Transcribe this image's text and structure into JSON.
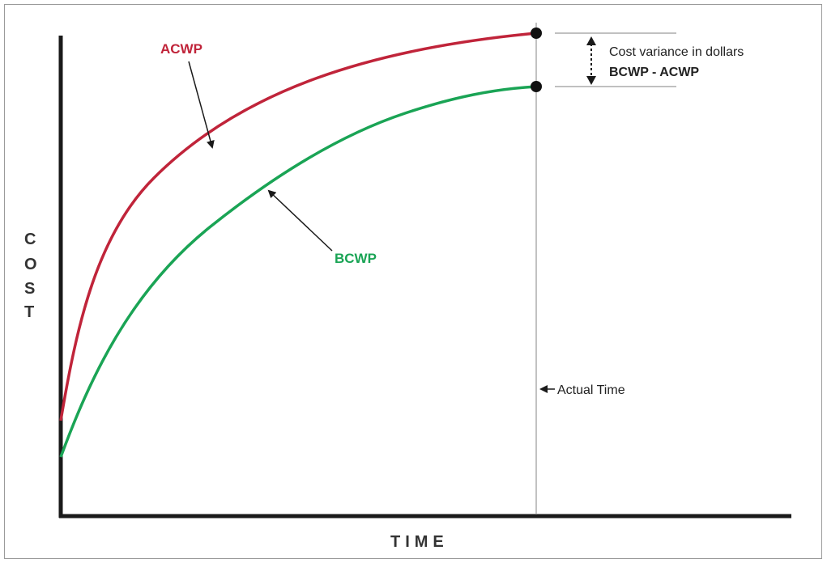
{
  "labels": {
    "acwp": "ACWP",
    "bcwp": "BCWP",
    "y_axis_letters": [
      "C",
      "O",
      "S",
      "T"
    ],
    "x_axis": "TIME",
    "actual_time": "Actual Time",
    "variance_line1": "Cost variance in dollars",
    "variance_line2": "BCWP - ACWP"
  },
  "colors": {
    "acwp": "#c0243a",
    "bcwp": "#1aa455",
    "axis": "#1a1a1a",
    "guide": "#9a9a9a"
  }
}
